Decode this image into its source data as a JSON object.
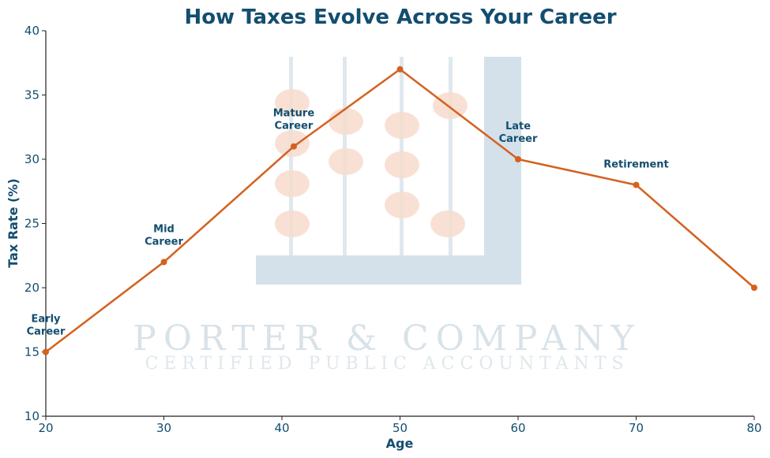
{
  "chart_data": {
    "type": "line",
    "title": "How Taxes Evolve Across Your Career",
    "xlabel": "Age",
    "ylabel": "Tax Rate (%)",
    "xlim": [
      20,
      80
    ],
    "ylim": [
      10,
      40
    ],
    "xticks": [
      20,
      30,
      40,
      50,
      60,
      70,
      80
    ],
    "yticks": [
      10,
      15,
      20,
      25,
      30,
      35,
      40
    ],
    "grid": false,
    "series": [
      {
        "x": [
          20,
          30,
          41,
          50,
          60,
          70,
          80
        ],
        "y": [
          15,
          22,
          31,
          37,
          30,
          28,
          20
        ]
      }
    ],
    "annotations": [
      {
        "lines": [
          "Early",
          "Career"
        ],
        "x": 20,
        "y": 15
      },
      {
        "lines": [
          "Mid",
          "Career"
        ],
        "x": 30,
        "y": 22
      },
      {
        "lines": [
          "Mature",
          "Career"
        ],
        "x": 41,
        "y": 31
      },
      {
        "lines": [
          "Late",
          "Career"
        ],
        "x": 60,
        "y": 30
      },
      {
        "lines": [
          "Retirement"
        ],
        "x": 70,
        "y": 28
      }
    ],
    "colors": {
      "line": "#d4611f",
      "text": "#134e6f",
      "watermark": "#a9c1cf",
      "bead": "#f7dccd"
    }
  },
  "watermark": {
    "name": "PORTER & COMPANY",
    "tagline": "CERTIFIED PUBLIC ACCOUNTANTS"
  }
}
